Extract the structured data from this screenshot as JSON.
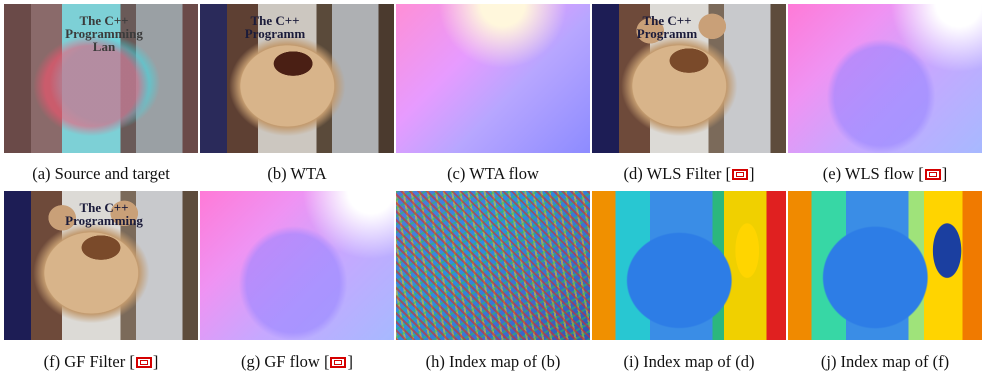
{
  "figure": {
    "panels": [
      {
        "id": "a",
        "caption": "(a)  Source and target",
        "scene": "anaglyph",
        "overlay_text": "The C++\nProgramming\nLan",
        "has_cite": false
      },
      {
        "id": "b",
        "caption": "(b)  WTA",
        "scene": "wta",
        "overlay_text": "The C++\nProgramm",
        "has_cite": false
      },
      {
        "id": "c",
        "caption": "(c)  WTA flow",
        "scene": "flow-noisy",
        "overlay_text": "",
        "has_cite": false
      },
      {
        "id": "d",
        "caption": "(d)  WLS Filter [",
        "caption_tail": "]",
        "scene": "real",
        "overlay_text": "The C++\nProgramm",
        "has_cite": true
      },
      {
        "id": "e",
        "caption": "(e)  WLS flow [",
        "caption_tail": "]",
        "scene": "flow-smooth",
        "overlay_text": "",
        "has_cite": true
      },
      {
        "id": "f",
        "caption": "(f)  GF Filter [",
        "caption_tail": "]",
        "scene": "real",
        "overlay_text": "The C++\nProgramming",
        "has_cite": true
      },
      {
        "id": "g",
        "caption": "(g)  GF flow [",
        "caption_tail": "]",
        "scene": "flow-smooth",
        "overlay_text": "",
        "has_cite": true
      },
      {
        "id": "h",
        "caption": "(h)  Index map of (b)",
        "scene": "idx-noisy",
        "overlay_text": "",
        "has_cite": false
      },
      {
        "id": "i",
        "caption": "(i)  Index map of (d)",
        "scene": "idx-d",
        "overlay_text": "",
        "has_cite": false
      },
      {
        "id": "j",
        "caption": "(j)  Index map of (f)",
        "scene": "idx-f",
        "overlay_text": "",
        "has_cite": false
      }
    ],
    "cite_color": "#d40000"
  }
}
